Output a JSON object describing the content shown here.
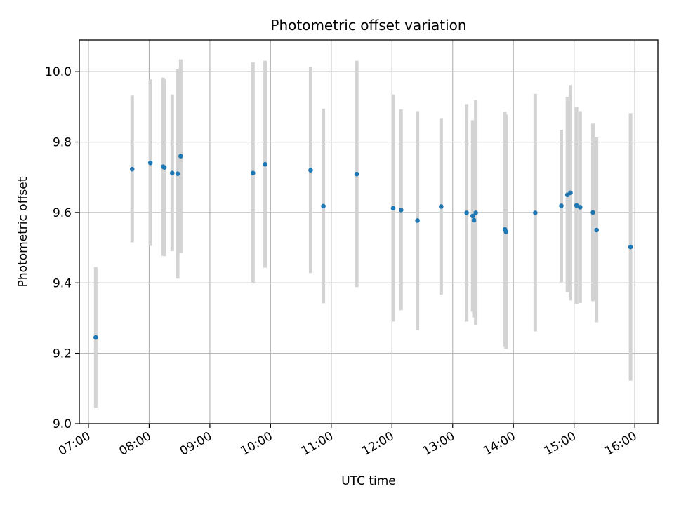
{
  "chart_data": {
    "type": "scatter",
    "title": "Photometric offset variation",
    "xlabel": "UTC time",
    "ylabel": "Photometric offset",
    "grid": true,
    "legend": "none",
    "x_unit": "hours UTC",
    "xlim": [
      6.85,
      16.38
    ],
    "ylim": [
      9.0,
      10.09
    ],
    "xticks": [
      {
        "value": 7,
        "label": "07:00"
      },
      {
        "value": 8,
        "label": "08:00"
      },
      {
        "value": 9,
        "label": "09:00"
      },
      {
        "value": 10,
        "label": "10:00"
      },
      {
        "value": 11,
        "label": "11:00"
      },
      {
        "value": 12,
        "label": "12:00"
      },
      {
        "value": 13,
        "label": "13:00"
      },
      {
        "value": 14,
        "label": "14:00"
      },
      {
        "value": 15,
        "label": "15:00"
      },
      {
        "value": 16,
        "label": "16:00"
      }
    ],
    "yticks": [
      {
        "value": 9.0,
        "label": "9.0"
      },
      {
        "value": 9.2,
        "label": "9.2"
      },
      {
        "value": 9.4,
        "label": "9.4"
      },
      {
        "value": 9.6,
        "label": "9.6"
      },
      {
        "value": 9.8,
        "label": "9.8"
      },
      {
        "value": 10.0,
        "label": "10.0"
      }
    ],
    "colors": {
      "point": "#1f77b4",
      "errorbar": "#d3d3d3",
      "grid": "#b0b0b0",
      "axis": "#000000"
    },
    "points": [
      {
        "x": 7.12,
        "y": 9.245,
        "lo": 9.045,
        "hi": 9.445
      },
      {
        "x": 7.72,
        "y": 9.723,
        "lo": 9.515,
        "hi": 9.932
      },
      {
        "x": 8.02,
        "y": 9.741,
        "lo": 9.505,
        "hi": 9.978
      },
      {
        "x": 8.23,
        "y": 9.73,
        "lo": 9.477,
        "hi": 9.983
      },
      {
        "x": 8.25,
        "y": 9.728,
        "lo": 9.476,
        "hi": 9.98
      },
      {
        "x": 8.38,
        "y": 9.712,
        "lo": 9.49,
        "hi": 9.935
      },
      {
        "x": 8.47,
        "y": 9.71,
        "lo": 9.412,
        "hi": 10.008
      },
      {
        "x": 8.52,
        "y": 9.76,
        "lo": 9.485,
        "hi": 10.035
      },
      {
        "x": 9.71,
        "y": 9.712,
        "lo": 9.398,
        "hi": 10.026
      },
      {
        "x": 9.91,
        "y": 9.737,
        "lo": 9.443,
        "hi": 10.031
      },
      {
        "x": 10.66,
        "y": 9.72,
        "lo": 9.428,
        "hi": 10.013
      },
      {
        "x": 10.87,
        "y": 9.618,
        "lo": 9.342,
        "hi": 9.895
      },
      {
        "x": 11.42,
        "y": 9.709,
        "lo": 9.388,
        "hi": 10.031
      },
      {
        "x": 12.02,
        "y": 9.612,
        "lo": 9.29,
        "hi": 9.935
      },
      {
        "x": 12.15,
        "y": 9.607,
        "lo": 9.322,
        "hi": 9.893
      },
      {
        "x": 12.42,
        "y": 9.577,
        "lo": 9.265,
        "hi": 9.888
      },
      {
        "x": 12.81,
        "y": 9.617,
        "lo": 9.367,
        "hi": 9.868
      },
      {
        "x": 13.23,
        "y": 9.599,
        "lo": 9.29,
        "hi": 9.908
      },
      {
        "x": 13.33,
        "y": 9.59,
        "lo": 9.318,
        "hi": 9.862
      },
      {
        "x": 13.35,
        "y": 9.578,
        "lo": 9.302,
        "hi": 9.855
      },
      {
        "x": 13.38,
        "y": 9.599,
        "lo": 9.28,
        "hi": 9.92
      },
      {
        "x": 13.86,
        "y": 9.552,
        "lo": 9.218,
        "hi": 9.886
      },
      {
        "x": 13.88,
        "y": 9.545,
        "lo": 9.213,
        "hi": 9.878
      },
      {
        "x": 14.36,
        "y": 9.599,
        "lo": 9.262,
        "hi": 9.937
      },
      {
        "x": 14.79,
        "y": 9.619,
        "lo": 9.402,
        "hi": 9.835
      },
      {
        "x": 14.89,
        "y": 9.65,
        "lo": 9.373,
        "hi": 9.928
      },
      {
        "x": 14.94,
        "y": 9.656,
        "lo": 9.35,
        "hi": 9.962
      },
      {
        "x": 15.04,
        "y": 9.62,
        "lo": 9.34,
        "hi": 9.9
      },
      {
        "x": 15.1,
        "y": 9.615,
        "lo": 9.343,
        "hi": 9.888
      },
      {
        "x": 15.31,
        "y": 9.6,
        "lo": 9.348,
        "hi": 9.852
      },
      {
        "x": 15.37,
        "y": 9.55,
        "lo": 9.288,
        "hi": 9.813
      },
      {
        "x": 15.93,
        "y": 9.502,
        "lo": 9.122,
        "hi": 9.882
      }
    ]
  }
}
